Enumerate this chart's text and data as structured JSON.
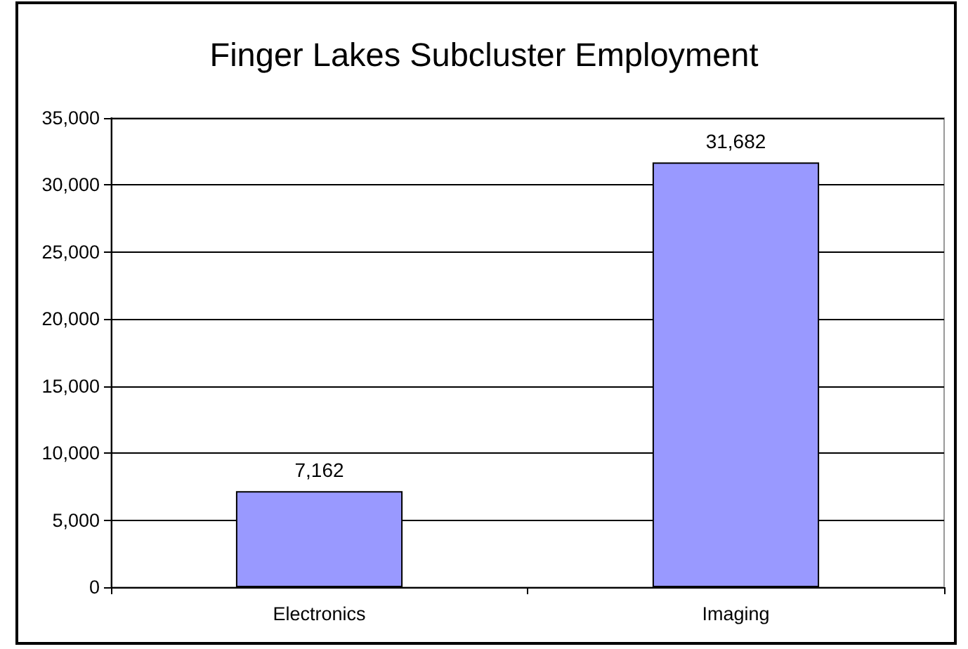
{
  "chart_data": {
    "type": "bar",
    "title": "Finger Lakes Subcluster Employment",
    "categories": [
      "Electronics",
      "Imaging"
    ],
    "values": [
      7162,
      31682
    ],
    "value_labels": [
      "7,162",
      "31,682"
    ],
    "color": "#9999ff",
    "ylim": [
      0,
      35000
    ],
    "yticks": [
      0,
      {
        "value": 5000,
        "label": "5,000"
      },
      {
        "value": 10000,
        "label": "10,000"
      },
      {
        "value": 15000,
        "label": "15,000"
      },
      {
        "value": 20000,
        "label": "20,000"
      },
      {
        "value": 25000,
        "label": "25,000"
      },
      {
        "value": 30000,
        "label": "30,000"
      },
      {
        "value": 35000,
        "label": "35,000"
      }
    ],
    "grid": "y"
  }
}
